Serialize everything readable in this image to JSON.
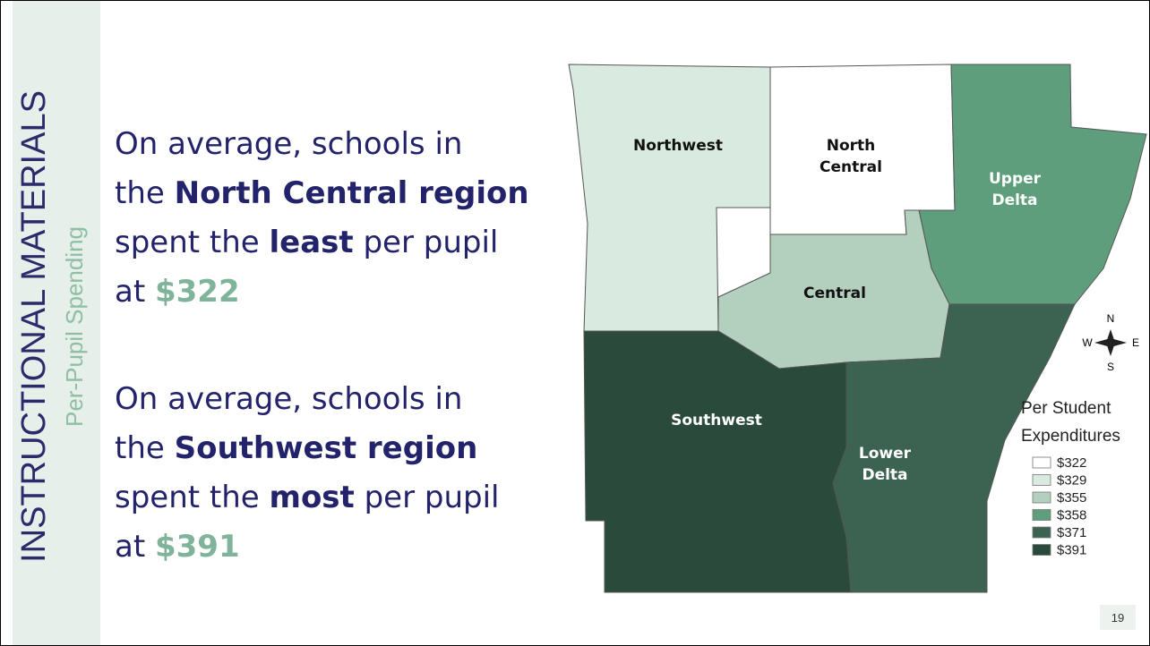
{
  "sidebar": {
    "title": "INSTRUCTIONAL MATERIALS",
    "subtitle": "Per-Pupil Spending"
  },
  "paragraphs": [
    {
      "lines": [
        [
          {
            "text": "On average, schools in",
            "style": "normal"
          }
        ],
        [
          {
            "text": "the ",
            "style": "normal"
          },
          {
            "text": "North Central region",
            "style": "bold"
          }
        ],
        [
          {
            "text": "spent the ",
            "style": "normal"
          },
          {
            "text": "least",
            "style": "bold"
          },
          {
            "text": " per pupil",
            "style": "normal"
          }
        ],
        [
          {
            "text": "at ",
            "style": "normal"
          },
          {
            "text": "$322",
            "style": "highlight"
          }
        ]
      ]
    },
    {
      "lines": [
        [
          {
            "text": "On average, schools in",
            "style": "normal"
          }
        ],
        [
          {
            "text": "the ",
            "style": "normal"
          },
          {
            "text": "Southwest region",
            "style": "bold"
          }
        ],
        [
          {
            "text": "spent the ",
            "style": "normal"
          },
          {
            "text": "most",
            "style": "bold"
          },
          {
            "text": " per pupil",
            "style": "normal"
          }
        ],
        [
          {
            "text": "at ",
            "style": "normal"
          },
          {
            "text": "$391",
            "style": "highlight"
          }
        ]
      ]
    }
  ],
  "map": {
    "regions": [
      {
        "lines": [
          "Northwest"
        ],
        "color": "#d9ebe0"
      },
      {
        "lines": [
          "North",
          "Central"
        ],
        "color": "#ffffff"
      },
      {
        "lines": [
          "Upper",
          "Delta"
        ],
        "color": "#5f9e7c"
      },
      {
        "lines": [
          "Central"
        ],
        "color": "#b3d0be"
      },
      {
        "lines": [
          "Southwest"
        ],
        "color": "#2a4a3c"
      },
      {
        "lines": [
          "Lower",
          "Delta"
        ],
        "color": "#3c6351"
      }
    ],
    "compass": {
      "n": "N",
      "s": "S",
      "e": "E",
      "w": "W"
    },
    "legend": {
      "title": [
        "Per Student",
        "Expenditures"
      ],
      "items": [
        {
          "label": "$322",
          "color": "#ffffff"
        },
        {
          "label": "$329",
          "color": "#d9ebe0"
        },
        {
          "label": "$355",
          "color": "#b3d0be"
        },
        {
          "label": "$358",
          "color": "#5f9e7c"
        },
        {
          "label": "$371",
          "color": "#3c6351"
        },
        {
          "label": "$391",
          "color": "#2a4a3c"
        }
      ]
    }
  },
  "page_number": "19"
}
